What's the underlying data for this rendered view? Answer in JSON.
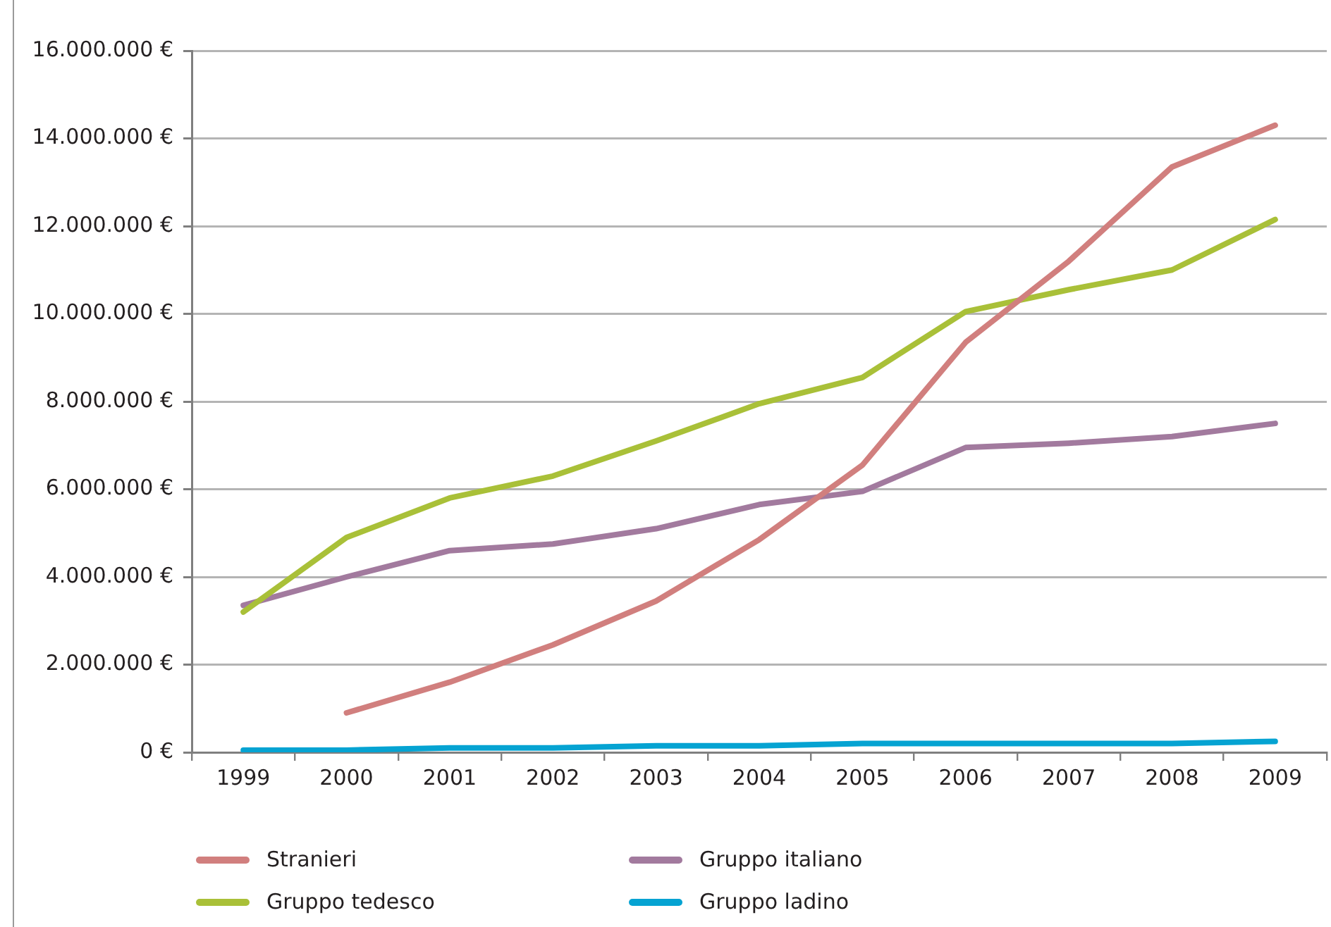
{
  "chart_data": {
    "type": "line",
    "categories": [
      "1999",
      "2000",
      "2001",
      "2002",
      "2003",
      "2004",
      "2005",
      "2006",
      "2007",
      "2008",
      "2009"
    ],
    "series": [
      {
        "name": "Stranieri",
        "color": "#d17f7e",
        "values": [
          null,
          900000,
          1600000,
          2450000,
          3450000,
          4850000,
          6550000,
          9350000,
          11200000,
          13350000,
          14300000
        ]
      },
      {
        "name": "Gruppo tedesco",
        "color": "#a9c038",
        "values": [
          3200000,
          4900000,
          5800000,
          6300000,
          7100000,
          7950000,
          8550000,
          10050000,
          10550000,
          11000000,
          12150000
        ]
      },
      {
        "name": "Gruppo italiano",
        "color": "#a27a9e",
        "values": [
          3350000,
          4000000,
          4600000,
          4750000,
          5100000,
          5650000,
          5950000,
          6950000,
          7050000,
          7200000,
          7500000
        ]
      },
      {
        "name": "Gruppo ladino",
        "color": "#05a3d2",
        "values": [
          50000,
          50000,
          100000,
          100000,
          150000,
          150000,
          200000,
          200000,
          200000,
          200000,
          250000
        ]
      }
    ],
    "ylim": [
      0,
      16000000
    ],
    "yticks": [
      {
        "value": 0,
        "label": "0 €"
      },
      {
        "value": 2000000,
        "label": "2.000.000 €"
      },
      {
        "value": 4000000,
        "label": "4.000.000 €"
      },
      {
        "value": 6000000,
        "label": "6.000.000 €"
      },
      {
        "value": 8000000,
        "label": "8.000.000 €"
      },
      {
        "value": 10000000,
        "label": "10.000.000 €"
      },
      {
        "value": 12000000,
        "label": "12.000.000 €"
      },
      {
        "value": 14000000,
        "label": "14.000.000 €"
      },
      {
        "value": 16000000,
        "label": "16.000.000 €"
      }
    ],
    "grid": "y",
    "legend": "bottom",
    "marker": "none",
    "line_style": "solid"
  }
}
